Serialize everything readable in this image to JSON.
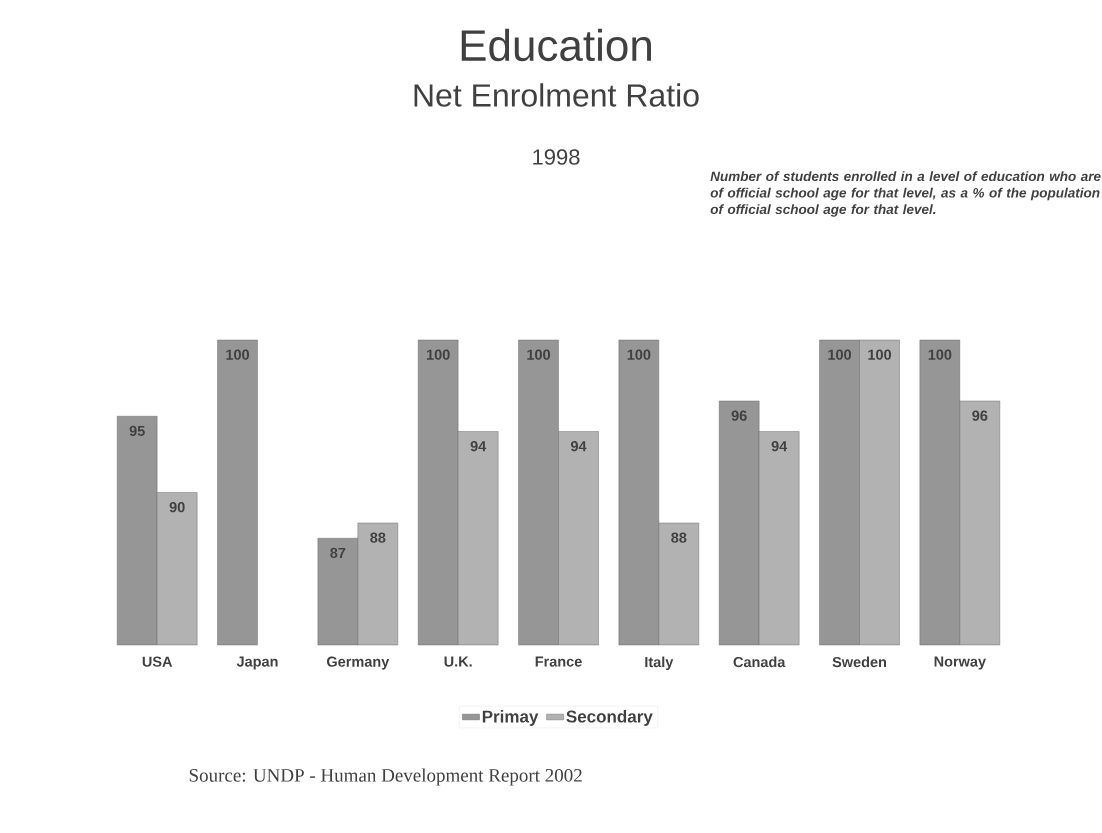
{
  "chart_data": {
    "type": "bar",
    "title": "Education",
    "subtitle": "Net Enrolment Ratio",
    "annotations": [
      "1998",
      "Number of students enrolled in a level of education who are of official school age for that level, as a % of the population of official school age for that level.",
      "Source: UNDP - Human Development Report 2002"
    ],
    "categories": [
      "USA",
      "Japan",
      "Germany",
      "U.K.",
      "France",
      "Italy",
      "Canada",
      "Sweden",
      "Norway"
    ],
    "series": [
      {
        "name": "Primay",
        "color": "#969696",
        "values": [
          95,
          100,
          87,
          100,
          100,
          100,
          96,
          100,
          100
        ]
      },
      {
        "name": "Secondary",
        "color": "#b2b2b2",
        "values": [
          90,
          null,
          88,
          94,
          94,
          88,
          94,
          100,
          96
        ]
      }
    ],
    "ylim": [
      80,
      100
    ],
    "data_labels": true,
    "legend": "bottom"
  }
}
